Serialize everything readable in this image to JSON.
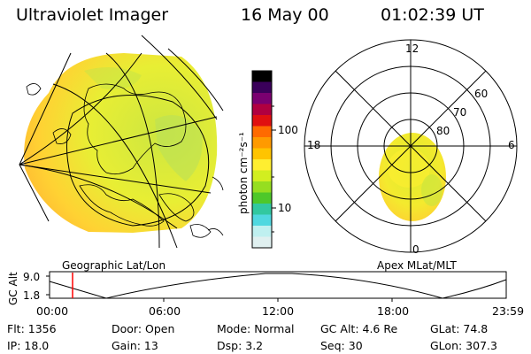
{
  "header": {
    "instrument": "Ultraviolet Imager",
    "date": "16 May 00",
    "time": "01:02:39 UT"
  },
  "left_map": {
    "caption": "Geographic Lat/Lon"
  },
  "right_map": {
    "caption": "Apex MLat/MLT",
    "mlt_labels": [
      "12",
      "18",
      "6",
      "0"
    ],
    "lat_labels": [
      "60",
      "70",
      "80"
    ]
  },
  "colorbar": {
    "unit": "photon cm⁻²s⁻¹",
    "tick_labels": [
      "100",
      "10"
    ],
    "scale": "log",
    "colors": [
      "#000000",
      "#3a005a",
      "#7a0070",
      "#b00040",
      "#e01010",
      "#ff6a00",
      "#ff9a00",
      "#ffc400",
      "#ffee30",
      "#d2ee20",
      "#96de20",
      "#4ec82a",
      "#32c8a0",
      "#50d8e0",
      "#bff0f0",
      "#e0f0f0"
    ]
  },
  "timeline": {
    "axis_label": "GC Alt",
    "y_labels": [
      "9.0",
      "1.8"
    ],
    "ticks": [
      "00:00",
      "06:00",
      "12:00",
      "18:00",
      "23:59"
    ],
    "marker_color": "#ff0000"
  },
  "info": {
    "flt": "Flt: 1356",
    "door": "Door: Open",
    "mode": "Mode: Normal",
    "gc_alt": "GC Alt: 4.6 Re",
    "glat": "GLat:  74.8",
    "ip": "IP: 18.0",
    "gain": "Gain: 13",
    "dsp": "Dsp:      3.2",
    "seq": "Seq: 30",
    "glon": "GLon: 307.3"
  }
}
